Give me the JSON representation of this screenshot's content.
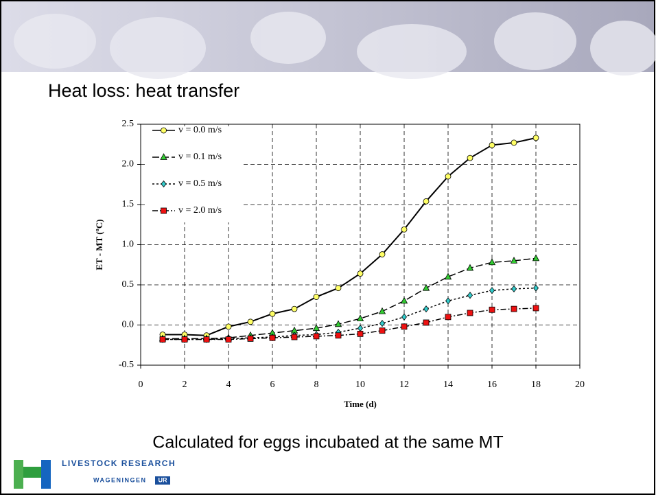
{
  "slide": {
    "title": "Heat loss: heat transfer",
    "caption": "Calculated for eggs incubated at the same MT",
    "logo": {
      "line1": "LIVESTOCK RESEARCH",
      "line2": "WAGENINGEN",
      "badge": "UR"
    }
  },
  "chart_data": {
    "type": "line",
    "xlabel": "Time (d)",
    "ylabel": "ET - MT (ºC)",
    "x": [
      1,
      2,
      3,
      4,
      5,
      6,
      7,
      8,
      9,
      10,
      11,
      12,
      13,
      14,
      15,
      16,
      17,
      18
    ],
    "series": [
      {
        "name": "v = 0.0 m/s",
        "color": "#ffff66",
        "marker": "circle",
        "dash": "none",
        "values": [
          -0.12,
          -0.12,
          -0.13,
          -0.02,
          0.04,
          0.14,
          0.2,
          0.35,
          0.46,
          0.64,
          0.88,
          1.19,
          1.54,
          1.85,
          2.08,
          2.24,
          2.27,
          2.33
        ]
      },
      {
        "name": "v = 0.1 m/s",
        "color": "#33cc33",
        "marker": "triangle",
        "dash": "10 4",
        "values": [
          -0.17,
          -0.17,
          -0.17,
          -0.16,
          -0.13,
          -0.1,
          -0.07,
          -0.04,
          0.01,
          0.08,
          0.17,
          0.3,
          0.46,
          0.6,
          0.71,
          0.78,
          0.8,
          0.83
        ]
      },
      {
        "name": "v = 0.5 m/s",
        "color": "#33cccc",
        "marker": "diamond",
        "dash": "3 3",
        "values": [
          -0.18,
          -0.18,
          -0.18,
          -0.17,
          -0.16,
          -0.15,
          -0.13,
          -0.12,
          -0.09,
          -0.04,
          0.02,
          0.1,
          0.2,
          0.3,
          0.37,
          0.43,
          0.45,
          0.46
        ]
      },
      {
        "name": "v = 2.0 m/s",
        "color": "#ee1111",
        "marker": "square",
        "dash": "8 3 2 3",
        "values": [
          -0.18,
          -0.18,
          -0.18,
          -0.18,
          -0.17,
          -0.16,
          -0.15,
          -0.14,
          -0.13,
          -0.11,
          -0.07,
          -0.02,
          0.03,
          0.1,
          0.15,
          0.19,
          0.2,
          0.21
        ]
      }
    ],
    "xlim": [
      0,
      20
    ],
    "xticks": [
      0,
      2,
      4,
      6,
      8,
      10,
      12,
      14,
      16,
      18,
      20
    ],
    "ylim": [
      -0.5,
      2.5
    ],
    "yticks": [
      -0.5,
      {
        "value": 0,
        "label": "0.0"
      },
      0.5,
      {
        "value": 1,
        "label": "1.0"
      },
      1.5,
      {
        "value": 2,
        "label": "2.0"
      },
      2.5
    ],
    "grid": true
  }
}
